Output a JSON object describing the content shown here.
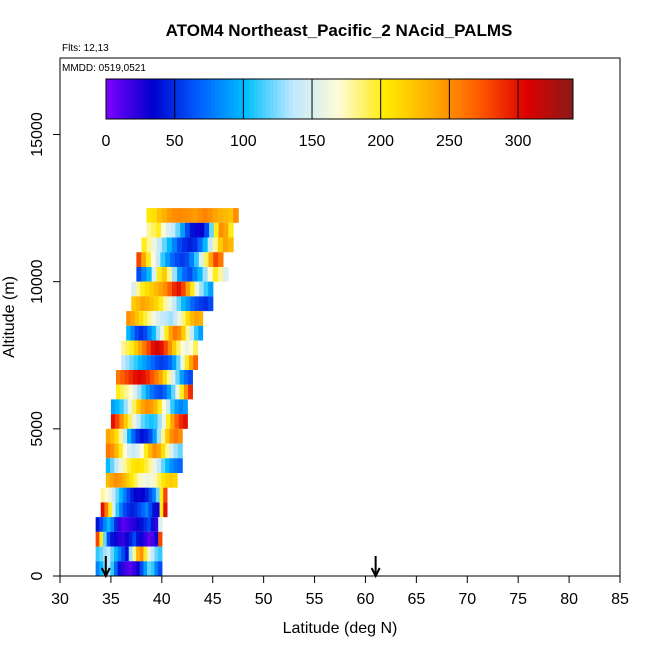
{
  "chart_data": {
    "type": "heatmap",
    "title": "ATOM4 Northeast_Pacific_2 NAcid_PALMS",
    "flights_label": "Flts: 12,13",
    "mmdd_label": "MMDD: 0519,0521",
    "xlabel": "Latitude (deg N)",
    "ylabel": "Altitude (m)",
    "xlim": [
      30,
      85
    ],
    "ylim": [
      0,
      17600
    ],
    "x_ticks": [
      "30",
      "35",
      "40",
      "45",
      "50",
      "55",
      "60",
      "65",
      "70",
      "75",
      "80",
      "85"
    ],
    "y_ticks": [
      "0",
      "5000",
      "10000",
      "15000"
    ],
    "colorbar": {
      "range": [
        0,
        340
      ],
      "ticks": [
        "0",
        "50",
        "100",
        "150",
        "200",
        "250",
        "300"
      ],
      "colors": [
        "#7f00ff",
        "#0000cd",
        "#0060ff",
        "#00c0ff",
        "#bfe8ff",
        "#fffbd6",
        "#ffea00",
        "#ffaa00",
        "#ff5a00",
        "#dd0000",
        "#8b1a1a"
      ]
    },
    "arrow_markers_lat": [
      34.5,
      61
    ],
    "bands": [
      {
        "alt": 12250,
        "lat_min": 38.5,
        "lat_max": 47.5,
        "values": [
          205,
          210,
          225,
          235,
          245,
          250,
          252,
          250,
          248,
          245,
          250,
          255,
          248,
          240,
          235,
          230,
          225,
          250
        ]
      },
      {
        "alt": 11750,
        "lat_min": 38.5,
        "lat_max": 47.0,
        "values": [
          180,
          190,
          200,
          170,
          150,
          140,
          120,
          90,
          60,
          40,
          30,
          35,
          60,
          120,
          200,
          250,
          240,
          200
        ]
      },
      {
        "alt": 11250,
        "lat_min": 38.0,
        "lat_max": 47.0,
        "values": [
          200,
          180,
          160,
          140,
          120,
          100,
          80,
          60,
          50,
          45,
          50,
          70,
          100,
          140,
          180,
          220,
          240,
          230
        ]
      },
      {
        "alt": 10750,
        "lat_min": 37.5,
        "lat_max": 46.0,
        "values": [
          280,
          240,
          200,
          170,
          140,
          110,
          90,
          70,
          60,
          55,
          60,
          80,
          110,
          150,
          190,
          240,
          280,
          260
        ]
      },
      {
        "alt": 10250,
        "lat_min": 37.5,
        "lat_max": 46.5,
        "values": [
          60,
          80,
          100,
          150,
          200,
          220,
          180,
          130,
          90,
          70,
          60,
          80,
          100,
          130,
          170,
          200,
          180,
          150
        ]
      },
      {
        "alt": 9750,
        "lat_min": 37.0,
        "lat_max": 45.0,
        "values": [
          150,
          180,
          200,
          210,
          220,
          230,
          240,
          250,
          270,
          290,
          300,
          280,
          240,
          200,
          160,
          130,
          110,
          90
        ]
      },
      {
        "alt": 9250,
        "lat_min": 37.0,
        "lat_max": 45.0,
        "values": [
          220,
          230,
          240,
          235,
          225,
          215,
          200,
          180,
          160,
          140,
          120,
          100,
          85,
          70,
          60,
          55,
          50,
          60
        ]
      },
      {
        "alt": 8750,
        "lat_min": 36.5,
        "lat_max": 44.0,
        "values": [
          250,
          240,
          225,
          210,
          195,
          180,
          165,
          150,
          140,
          135,
          130,
          140,
          160,
          185,
          210,
          230,
          240,
          235
        ]
      },
      {
        "alt": 8250,
        "lat_min": 36.5,
        "lat_max": 44.0,
        "values": [
          100,
          80,
          60,
          50,
          60,
          80,
          100,
          130,
          160,
          200,
          240,
          260,
          250,
          220,
          180,
          140,
          110,
          90
        ]
      },
      {
        "alt": 7750,
        "lat_min": 36.0,
        "lat_max": 43.5,
        "values": [
          180,
          190,
          200,
          220,
          240,
          260,
          280,
          300,
          310,
          300,
          280,
          250,
          220,
          190,
          170,
          160,
          170,
          190
        ]
      },
      {
        "alt": 7250,
        "lat_min": 36.0,
        "lat_max": 43.5,
        "values": [
          140,
          130,
          120,
          110,
          100,
          90,
          80,
          70,
          60,
          55,
          60,
          70,
          90,
          120,
          160,
          200,
          240,
          270
        ]
      },
      {
        "alt": 6750,
        "lat_min": 35.5,
        "lat_max": 43.0,
        "values": [
          260,
          270,
          280,
          290,
          300,
          305,
          300,
          290,
          275,
          260,
          240,
          210,
          180,
          150,
          120,
          90,
          70,
          60
        ]
      },
      {
        "alt": 6250,
        "lat_min": 35.5,
        "lat_max": 43.0,
        "values": [
          200,
          190,
          180,
          170,
          150,
          130,
          110,
          90,
          75,
          65,
          60,
          70,
          90,
          120,
          160,
          200,
          250,
          290
        ]
      },
      {
        "alt": 5750,
        "lat_min": 35.0,
        "lat_max": 42.5,
        "values": [
          90,
          100,
          110,
          130,
          160,
          190,
          220,
          240,
          250,
          245,
          230,
          200,
          170,
          140,
          110,
          90,
          80,
          90
        ]
      },
      {
        "alt": 5250,
        "lat_min": 35.0,
        "lat_max": 42.5,
        "values": [
          300,
          280,
          250,
          220,
          190,
          160,
          140,
          120,
          110,
          105,
          110,
          130,
          160,
          200,
          240,
          270,
          290,
          300
        ]
      },
      {
        "alt": 4750,
        "lat_min": 34.5,
        "lat_max": 42.0,
        "values": [
          240,
          230,
          210,
          180,
          140,
          100,
          70,
          50,
          40,
          45,
          60,
          90,
          130,
          180,
          220,
          250,
          260,
          250
        ]
      },
      {
        "alt": 4250,
        "lat_min": 34.5,
        "lat_max": 42.0,
        "values": [
          260,
          250,
          230,
          200,
          170,
          150,
          140,
          150,
          170,
          200,
          230,
          250,
          240,
          210,
          180,
          150,
          130,
          120
        ]
      },
      {
        "alt": 3750,
        "lat_min": 34.5,
        "lat_max": 42.0,
        "values": [
          100,
          120,
          140,
          160,
          180,
          195,
          205,
          210,
          205,
          195,
          180,
          160,
          140,
          120,
          100,
          85,
          75,
          70
        ]
      },
      {
        "alt": 3250,
        "lat_min": 34.5,
        "lat_max": 41.5,
        "values": [
          230,
          240,
          250,
          245,
          235,
          220,
          205,
          190,
          175,
          165,
          160,
          165,
          175,
          190,
          205,
          215,
          220,
          215
        ]
      },
      {
        "alt": 2750,
        "lat_min": 34.0,
        "lat_max": 40.5,
        "values": [
          180,
          170,
          160,
          140,
          120,
          100,
          80,
          60,
          45,
          35,
          30,
          35,
          45,
          60,
          80,
          120,
          200,
          280
        ]
      },
      {
        "alt": 2250,
        "lat_min": 34.0,
        "lat_max": 40.5,
        "values": [
          300,
          260,
          200,
          150,
          110,
          80,
          60,
          50,
          45,
          50,
          60,
          70,
          80,
          60,
          40,
          30,
          200,
          300
        ]
      },
      {
        "alt": 1750,
        "lat_min": 33.5,
        "lat_max": 40.0,
        "values": [
          40,
          60,
          80,
          100,
          80,
          50,
          20,
          10,
          15,
          20,
          25,
          30,
          40,
          50,
          60,
          40,
          20,
          150
        ]
      },
      {
        "alt": 1250,
        "lat_min": 33.5,
        "lat_max": 40.0,
        "values": [
          280,
          200,
          120,
          60,
          40,
          30,
          25,
          20,
          30,
          45,
          60,
          40,
          30,
          20,
          10,
          15,
          30,
          280
        ]
      },
      {
        "alt": 750,
        "lat_min": 33.5,
        "lat_max": 40.0,
        "values": [
          110,
          120,
          130,
          140,
          120,
          100,
          80,
          60,
          40,
          130,
          180,
          230,
          250,
          200,
          160,
          140,
          120,
          110
        ]
      },
      {
        "alt": 250,
        "lat_min": 33.5,
        "lat_max": 40.0,
        "values": [
          80,
          100,
          120,
          140,
          110,
          70,
          40,
          20,
          15,
          10,
          20,
          30,
          60,
          90,
          120,
          110,
          80,
          60
        ]
      }
    ]
  }
}
